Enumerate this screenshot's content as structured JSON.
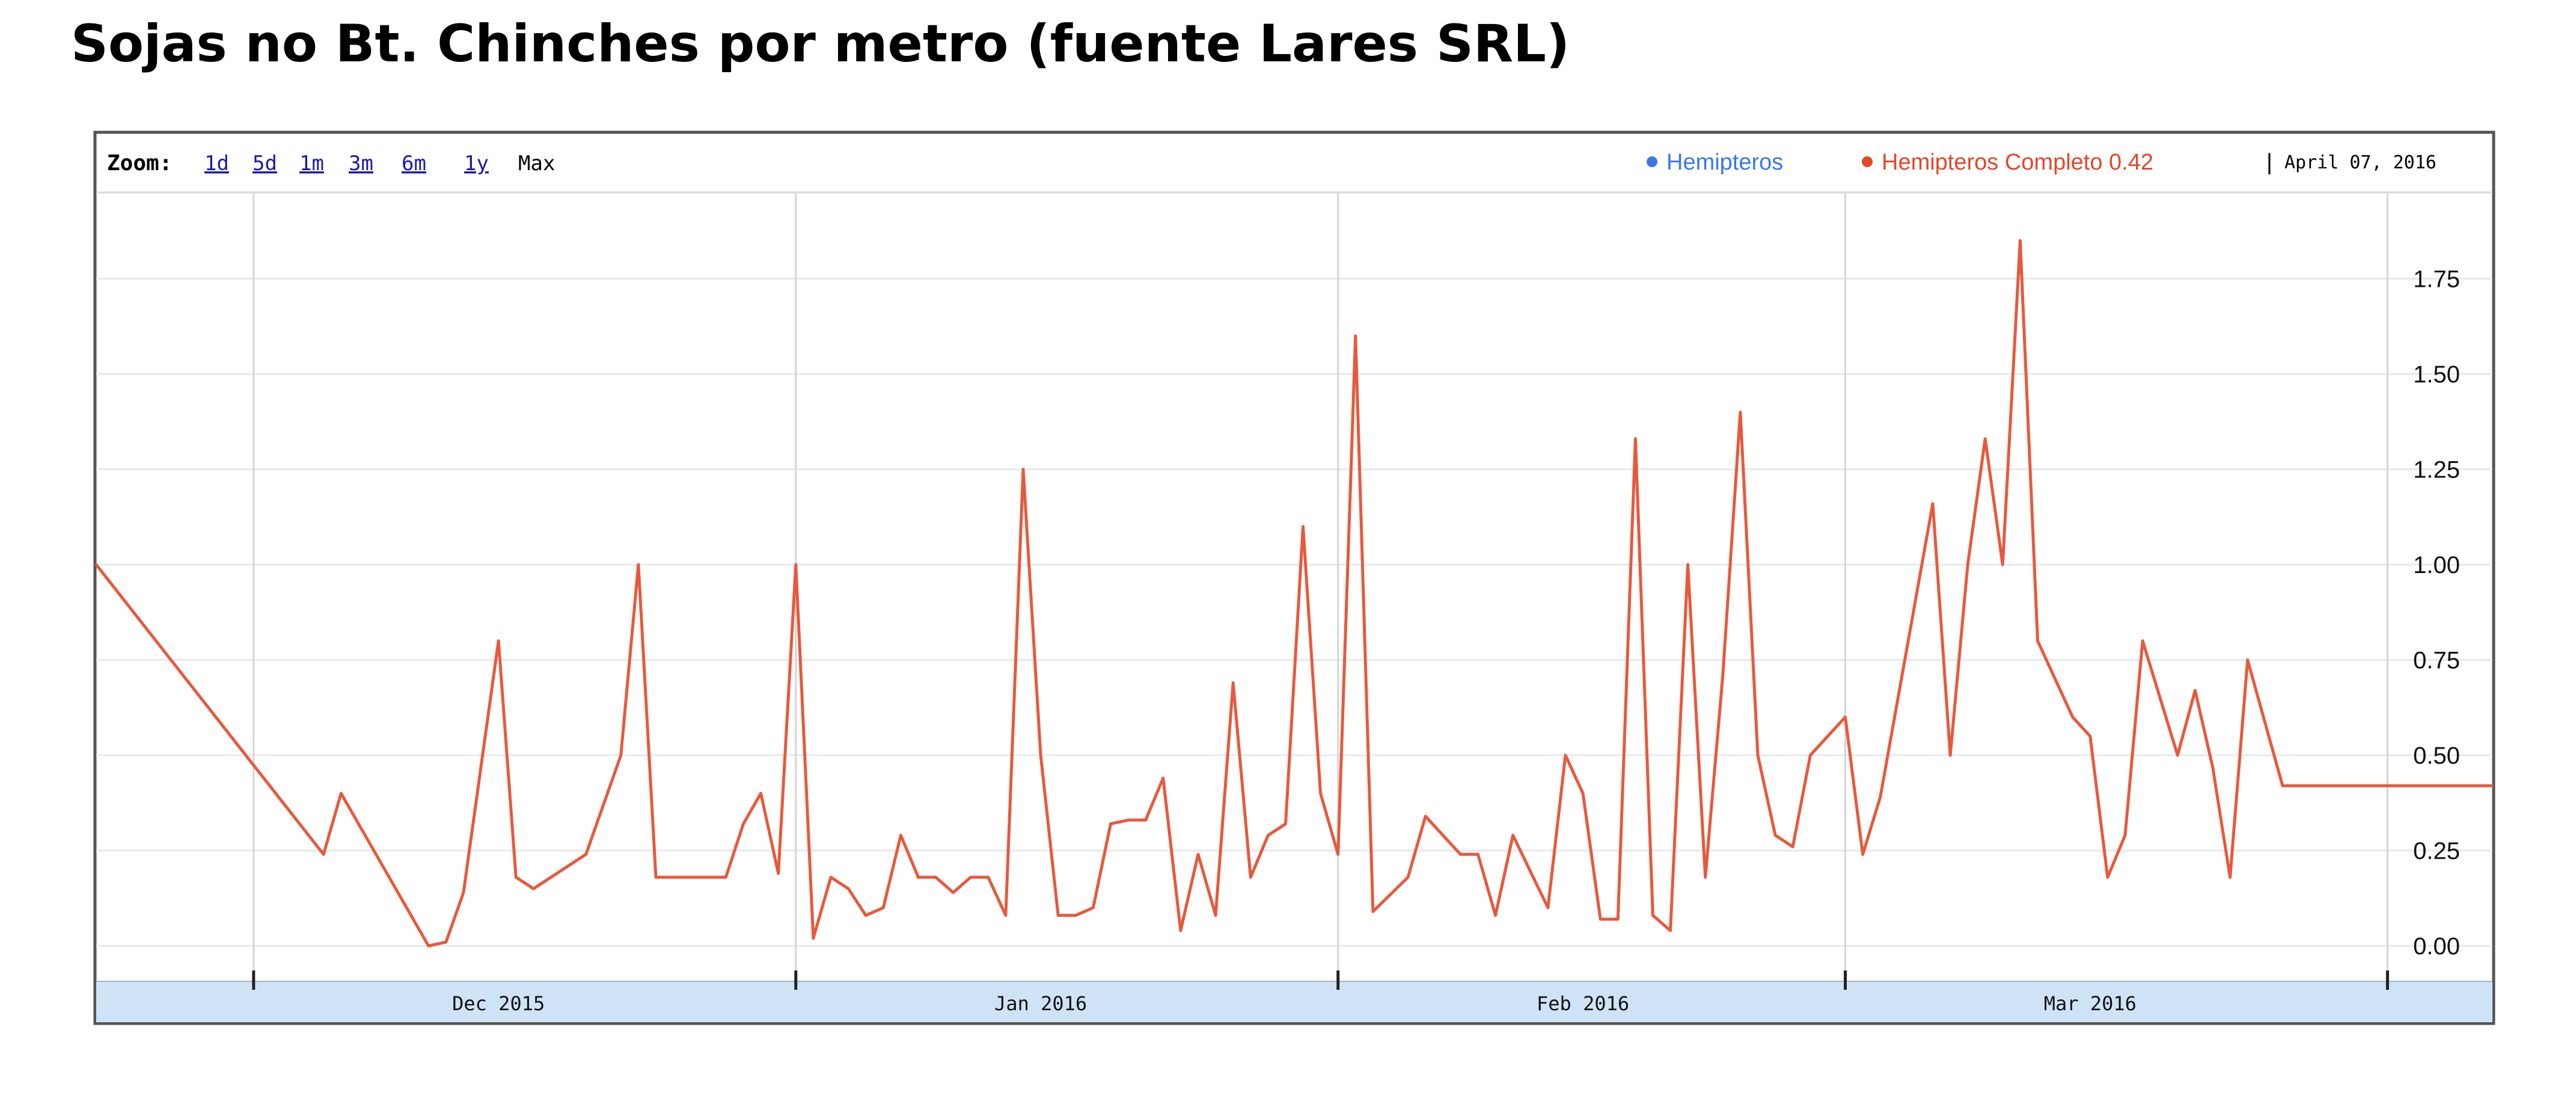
{
  "title": "Sojas no Bt. Chinches por metro (fuente Lares SRL)",
  "zoom": {
    "label": "Zoom:",
    "links": [
      "1d",
      "5d",
      "1m",
      "3m",
      "6m",
      "1y"
    ],
    "active": "Max"
  },
  "legend": {
    "items": [
      {
        "label": "Hemipteros",
        "color": "#3b78e7"
      },
      {
        "label": "Hemipteros Completo 0.42",
        "color": "#e0482a"
      }
    ],
    "separator": "|",
    "date": "April 07, 2016"
  },
  "colors": {
    "line": "#e8593c",
    "grid": "#e6e9f2",
    "month_grid": "#d5d5d5",
    "axis_band": "#cfe3f7",
    "frame": "#555555"
  },
  "chart_data": {
    "type": "line",
    "title": "Sojas no Bt. Chinches por metro (fuente Lares SRL)",
    "xlabel": "",
    "ylabel": "",
    "x_range": [
      "2015-11-22",
      "2016-04-07"
    ],
    "ylim": [
      0,
      2
    ],
    "y_ticks": [
      "0.00",
      "0.25",
      "0.50",
      "0.75",
      "1.00",
      "1.25",
      "1.50",
      "1.75"
    ],
    "x_tick_labels": [
      {
        "label": "Dec 2015",
        "date": "2015-12-15"
      },
      {
        "label": "Jan 2016",
        "date": "2016-01-15"
      },
      {
        "label": "Feb 2016",
        "date": "2016-02-15"
      },
      {
        "label": "Mar 2016",
        "date": "2016-03-15"
      }
    ],
    "x_month_lines": [
      "2015-12-01",
      "2016-01-01",
      "2016-02-01",
      "2016-03-01",
      "2016-04-01"
    ],
    "legend_position": "top-right",
    "grid": true,
    "series": [
      {
        "name": "Hemipteros Completo",
        "x": [
          "2015-11-22",
          "2015-12-05",
          "2015-12-06",
          "2015-12-11",
          "2015-12-12",
          "2015-12-13",
          "2015-12-15",
          "2015-12-16",
          "2015-12-17",
          "2015-12-20",
          "2015-12-22",
          "2015-12-23",
          "2015-12-24",
          "2015-12-25",
          "2015-12-28",
          "2015-12-29",
          "2015-12-30",
          "2015-12-31",
          "2016-01-01",
          "2016-01-02",
          "2016-01-03",
          "2016-01-04",
          "2016-01-05",
          "2016-01-06",
          "2016-01-07",
          "2016-01-08",
          "2016-01-09",
          "2016-01-10",
          "2016-01-11",
          "2016-01-12",
          "2016-01-13",
          "2016-01-14",
          "2016-01-15",
          "2016-01-16",
          "2016-01-17",
          "2016-01-18",
          "2016-01-19",
          "2016-01-20",
          "2016-01-21",
          "2016-01-22",
          "2016-01-23",
          "2016-01-24",
          "2016-01-25",
          "2016-01-26",
          "2016-01-27",
          "2016-01-28",
          "2016-01-29",
          "2016-01-30",
          "2016-01-31",
          "2016-02-01",
          "2016-02-02",
          "2016-02-03",
          "2016-02-05",
          "2016-02-06",
          "2016-02-08",
          "2016-02-09",
          "2016-02-10",
          "2016-02-11",
          "2016-02-13",
          "2016-02-14",
          "2016-02-15",
          "2016-02-16",
          "2016-02-17",
          "2016-02-18",
          "2016-02-19",
          "2016-02-20",
          "2016-02-21",
          "2016-02-22",
          "2016-02-23",
          "2016-02-24",
          "2016-02-25",
          "2016-02-26",
          "2016-02-27",
          "2016-02-28",
          "2016-03-01",
          "2016-03-02",
          "2016-03-03",
          "2016-03-06",
          "2016-03-07",
          "2016-03-08",
          "2016-03-09",
          "2016-03-10",
          "2016-03-11",
          "2016-03-12",
          "2016-03-14",
          "2016-03-15",
          "2016-03-16",
          "2016-03-17",
          "2016-03-18",
          "2016-03-20",
          "2016-03-21",
          "2016-03-22",
          "2016-03-23",
          "2016-03-24",
          "2016-03-26",
          "2016-03-29",
          "2016-03-30",
          "2016-04-01",
          "2016-04-02",
          "2016-04-07"
        ],
        "values": [
          1.0,
          0.24,
          0.4,
          0.0,
          0.01,
          0.14,
          0.8,
          0.18,
          0.15,
          0.24,
          0.5,
          1.0,
          0.18,
          0.18,
          0.18,
          0.32,
          0.4,
          0.19,
          1.0,
          0.02,
          0.18,
          0.15,
          0.08,
          0.1,
          0.29,
          0.18,
          0.18,
          0.14,
          0.18,
          0.18,
          0.08,
          1.25,
          0.5,
          0.08,
          0.08,
          0.1,
          0.32,
          0.33,
          0.33,
          0.44,
          0.04,
          0.24,
          0.08,
          0.69,
          0.18,
          0.29,
          0.32,
          1.1,
          0.4,
          0.24,
          1.6,
          0.09,
          0.18,
          0.34,
          0.24,
          0.24,
          0.08,
          0.29,
          0.1,
          0.5,
          0.4,
          0.07,
          0.07,
          1.33,
          0.08,
          0.04,
          1.0,
          0.18,
          0.71,
          1.4,
          0.5,
          0.29,
          0.26,
          0.5,
          0.6,
          0.24,
          0.39,
          1.16,
          0.5,
          1.0,
          1.33,
          1.0,
          1.85,
          0.8,
          0.6,
          0.55,
          0.18,
          0.29,
          0.8,
          0.5,
          0.67,
          0.47,
          0.18,
          0.75,
          0.42,
          0.42,
          0.42,
          0.42,
          0.42,
          0.42
        ]
      }
    ]
  }
}
